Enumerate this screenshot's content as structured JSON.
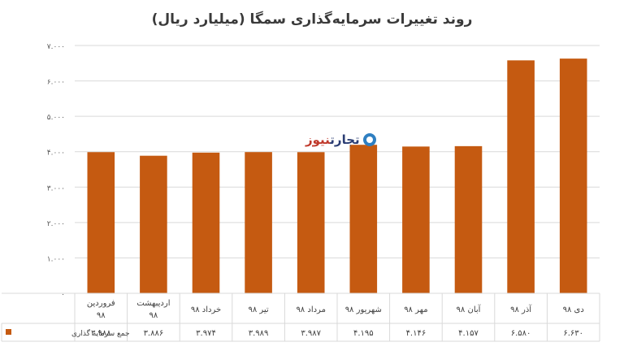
{
  "title": "روند تغییرات سرمایه‌گذاری سمگا (میلیارد ریال)",
  "watermark": {
    "brand_main": "تجارت",
    "brand_accent": "نیوز",
    "icon": "brand-logo-icon"
  },
  "chart_data": {
    "type": "bar",
    "title": "روند تغییرات سرمایه‌گذاری سمگا (میلیارد ریال)",
    "categories": [
      "فروردین ۹۸",
      "اردیبهشت ۹۸",
      "خرداد ۹۸",
      "تیر ۹۸",
      "مرداد ۹۸",
      "شهریور ۹۸",
      "مهر ۹۸",
      "آبان ۹۸",
      "آذر ۹۸",
      "دی ۹۸"
    ],
    "series": [
      {
        "name": "جمع سرمایه گذاری",
        "values": [
          3988,
          3886,
          3974,
          3989,
          3987,
          4195,
          4146,
          4157,
          6580,
          6630
        ],
        "value_labels": [
          "۳.۹۸۸",
          "۳.۸۸۶",
          "۳.۹۷۴",
          "۳.۹۸۹",
          "۳.۹۸۷",
          "۴.۱۹۵",
          "۴.۱۴۶",
          "۴.۱۵۷",
          "۶.۵۸۰",
          "۶.۶۳۰"
        ]
      }
    ],
    "ylim": [
      0,
      7000
    ],
    "yticks": [
      0,
      1000,
      2000,
      3000,
      4000,
      5000,
      6000,
      7000
    ],
    "ytick_labels": [
      "۰",
      "۱.۰۰۰",
      "۲.۰۰۰",
      "۳.۰۰۰",
      "۴.۰۰۰",
      "۵.۰۰۰",
      "۶.۰۰۰",
      "۷.۰۰۰"
    ],
    "grid": true,
    "legend": "bottom-left",
    "data_table": true,
    "bar_color": "#c55a11",
    "grid_color": "#d9d9d9"
  }
}
